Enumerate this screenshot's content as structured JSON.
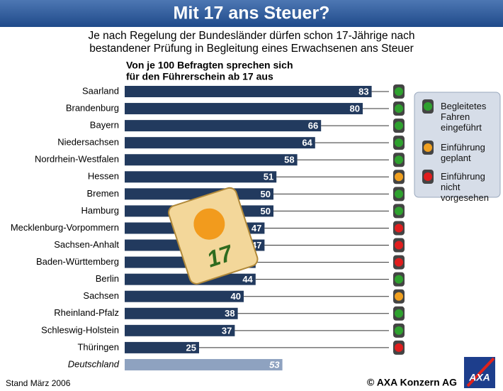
{
  "chart_data": {
    "type": "bar",
    "title": "Mit 17 ans Steuer?",
    "subtitle": [
      "Je nach Regelung der Bundesländer dürfen schon 17-Jährige nach",
      "bestandener Prüfung in Begleitung eines Erwachsenen ans Steuer"
    ],
    "axis_label": [
      "Von je 100 Befragten sprechen sich",
      "für den Führerschein ab 17 aus"
    ],
    "categories": [
      "Saarland",
      "Brandenburg",
      "Bayern",
      "Niedersachsen",
      "Nordrhein-Westfalen",
      "Hessen",
      "Bremen",
      "Hamburg",
      "Mecklenburg-Vorpommern",
      "Sachsen-Anhalt",
      "Baden-Württemberg",
      "Berlin",
      "Sachsen",
      "Rheinland-Pfalz",
      "Schleswig-Holstein",
      "Thüringen"
    ],
    "values": [
      83,
      80,
      66,
      64,
      58,
      51,
      50,
      50,
      47,
      47,
      44,
      44,
      40,
      38,
      37,
      25
    ],
    "color": "#223a5e",
    "light_colors": [
      "#2fa12f",
      "#2fa12f",
      "#2fa12f",
      "#2fa12f",
      "#2fa12f",
      "#f0a020",
      "#2fa12f",
      "#2fa12f",
      "#e01e1e",
      "#e01e1e",
      "#e01e1e",
      "#2fa12f",
      "#f0a020",
      "#2fa12f",
      "#2fa12f",
      "#e01e1e"
    ],
    "total": {
      "label": "Deutschland",
      "value": 53,
      "color": "#8ea2c0"
    },
    "legend": [
      {
        "label": "Begleitetes Fahren eingeführt",
        "color": "#2fa12f"
      },
      {
        "label": "Einführung geplant",
        "color": "#f0a020"
      },
      {
        "label": "Einführung nicht vorgesehen",
        "color": "#e01e1e"
      }
    ],
    "tag_text": "17",
    "footer_left": "Stand März 2006",
    "footer_right": "© AXA Konzern AG",
    "logo": "AXA"
  }
}
